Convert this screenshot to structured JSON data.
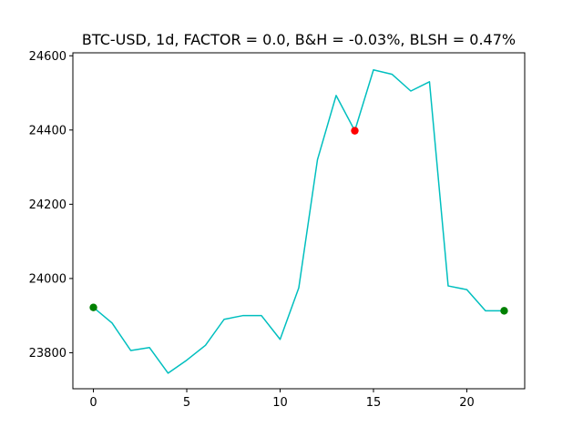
{
  "chart_data": {
    "type": "line",
    "title": "BTC-USD, 1d, FACTOR = 0.0, B&H = -0.03%, BLSH = 0.47%",
    "xlabel": "",
    "ylabel": "",
    "xlim": [
      -1.1,
      23.1
    ],
    "ylim": [
      23703,
      24608
    ],
    "xticks": [
      0,
      5,
      10,
      15,
      20
    ],
    "yticks": [
      23800,
      24000,
      24200,
      24400,
      24600
    ],
    "grid": false,
    "series": [
      {
        "x": [
          0,
          1,
          2,
          3,
          4,
          5,
          6,
          7,
          8,
          9,
          10,
          11,
          12,
          13,
          14,
          15,
          16,
          17,
          18,
          19,
          20,
          21,
          22
        ],
        "y": [
          23922,
          23880,
          23806,
          23814,
          23745,
          23780,
          23820,
          23890,
          23900,
          23900,
          23836,
          23975,
          24320,
          24493,
          24398,
          24562,
          24550,
          24505,
          24530,
          23980,
          23970,
          23913,
          23913
        ],
        "color": "#00bfbf"
      }
    ],
    "markers": [
      {
        "x": 0,
        "y": 23922,
        "color": "#008000"
      },
      {
        "x": 14,
        "y": 24398,
        "color": "#ff0000"
      },
      {
        "x": 22,
        "y": 23913,
        "color": "#008000"
      }
    ]
  }
}
